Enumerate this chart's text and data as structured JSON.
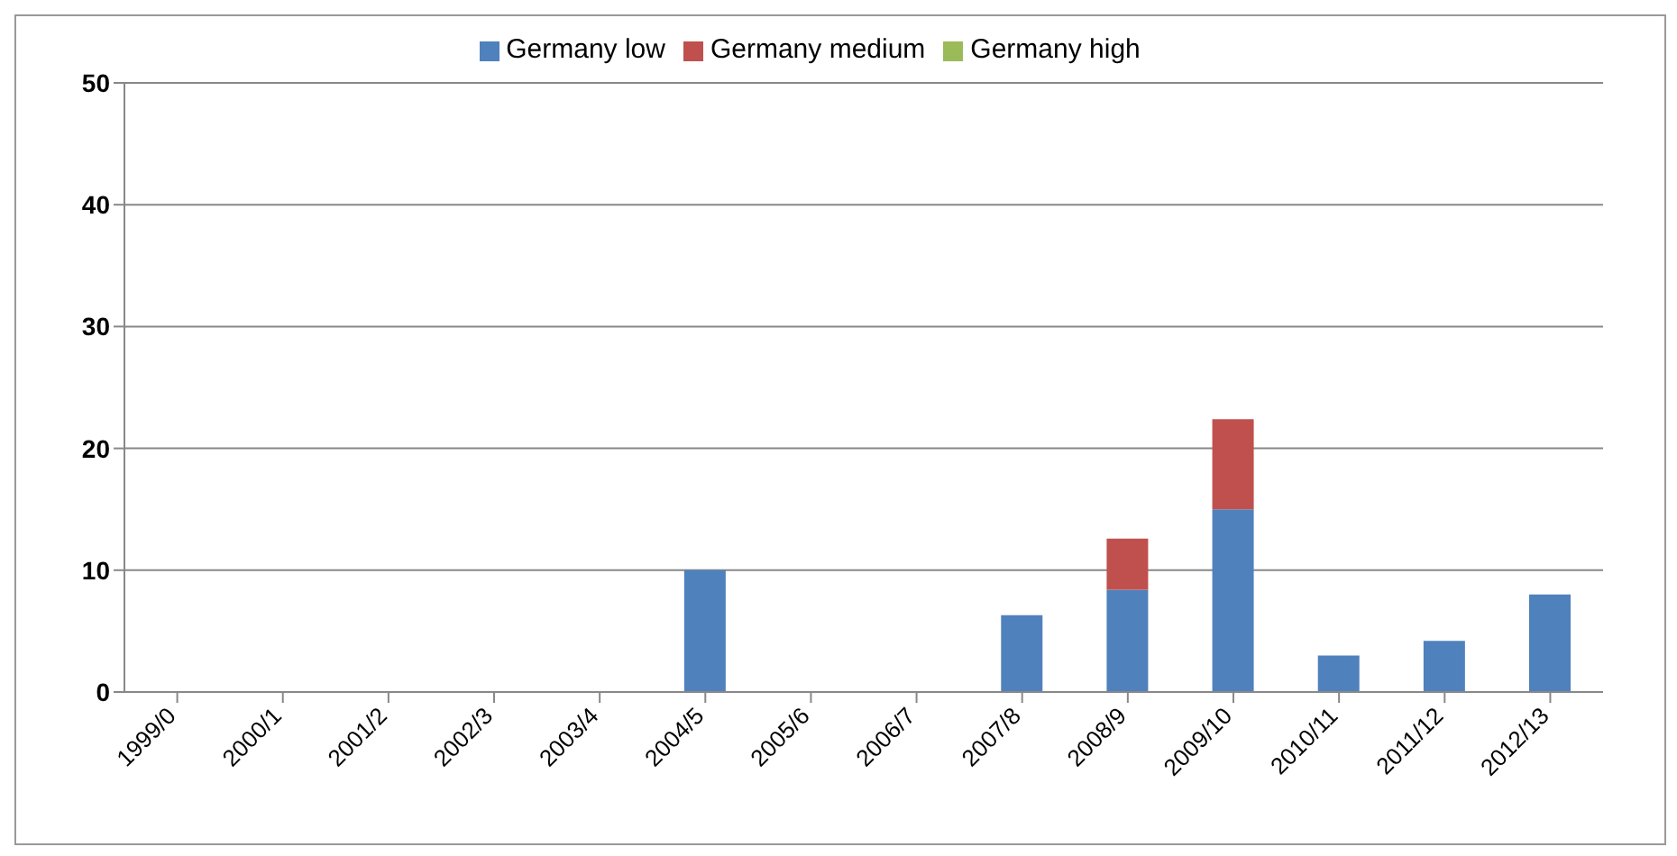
{
  "chart_data": {
    "type": "bar",
    "stacked": true,
    "categories": [
      "1999/0",
      "2000/1",
      "2001/2",
      "2002/3",
      "2003/4",
      "2004/5",
      "2005/6",
      "2006/7",
      "2007/8",
      "2008/9",
      "2009/10",
      "2010/11",
      "2011/12",
      "2012/13"
    ],
    "series": [
      {
        "name": "Germany low",
        "color": "#4f81bd",
        "values": [
          0,
          0,
          0,
          0,
          0,
          10,
          0,
          0,
          6.3,
          8.4,
          15,
          3,
          4.2,
          8
        ]
      },
      {
        "name": "Germany medium",
        "color": "#c0504d",
        "values": [
          0,
          0,
          0,
          0,
          0,
          0,
          0,
          0,
          0,
          4.2,
          7.4,
          0,
          0,
          0
        ]
      },
      {
        "name": "Germany high",
        "color": "#9bbb59",
        "values": [
          0,
          0,
          0,
          0,
          0,
          0,
          0,
          0,
          0,
          0,
          0,
          0,
          0,
          0
        ]
      }
    ],
    "ylim": [
      0,
      50
    ],
    "yticks": [
      0,
      10,
      20,
      30,
      40,
      50
    ],
    "grid": "y",
    "legend": "top"
  }
}
